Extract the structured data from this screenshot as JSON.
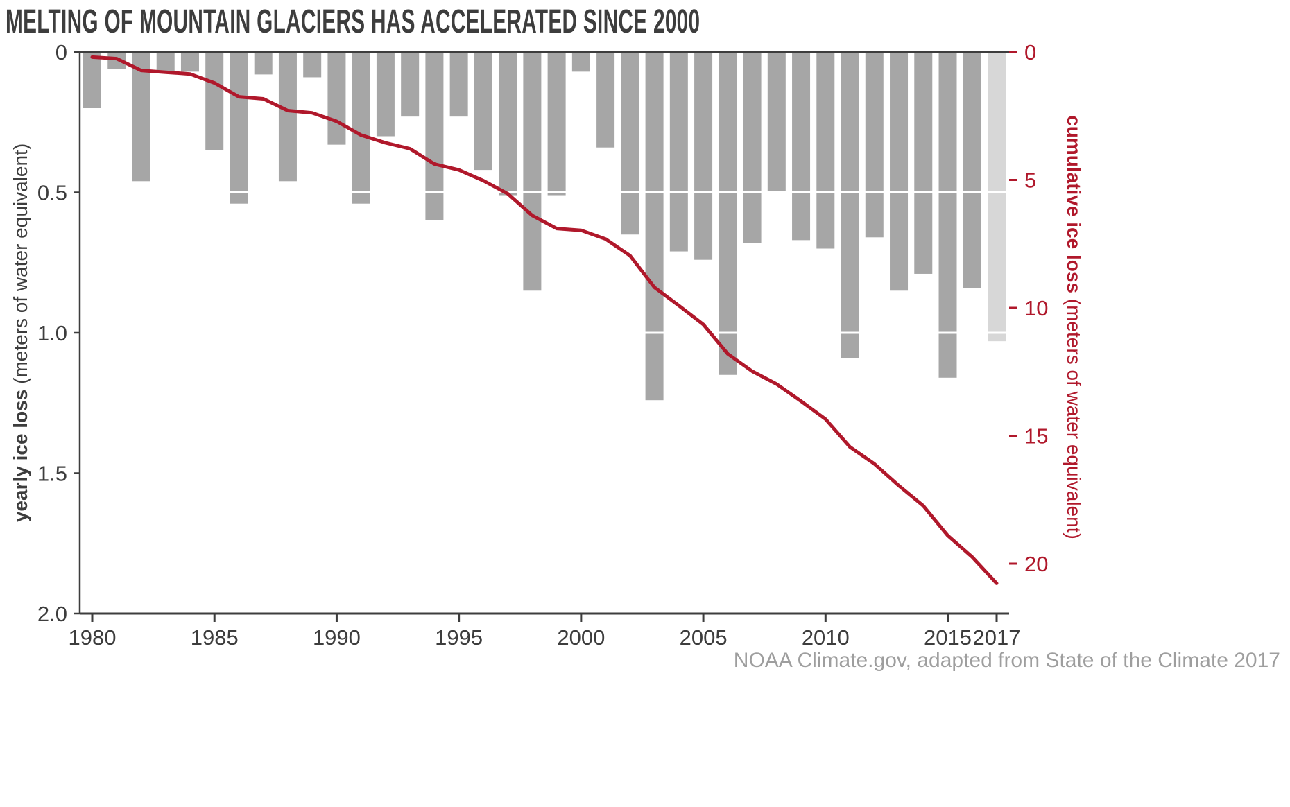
{
  "title": "MELTING OF MOUNTAIN GLACIERS HAS ACCELERATED SINCE 2000",
  "source": "NOAA Climate.gov, adapted from State of the Climate 2017",
  "colors": {
    "bar": "#a6a6a6",
    "bar_preliminary": "#d7d7d7",
    "line": "#b0182b",
    "axis_dark": "#3d3d3d",
    "grid_white": "#ffffff",
    "source_gray": "#9e9e9e"
  },
  "chart_data": {
    "type": "bar",
    "title": "MELTING OF MOUNTAIN GLACIERS HAS ACCELERATED SINCE 2000",
    "years": [
      1980,
      1981,
      1982,
      1983,
      1984,
      1985,
      1986,
      1987,
      1988,
      1989,
      1990,
      1991,
      1992,
      1993,
      1994,
      1995,
      1996,
      1997,
      1998,
      1999,
      2000,
      2001,
      2002,
      2003,
      2004,
      2005,
      2006,
      2007,
      2008,
      2009,
      2010,
      2011,
      2012,
      2013,
      2014,
      2015,
      2016,
      2017
    ],
    "series": [
      {
        "name": "yearly ice loss",
        "chart": "bar",
        "axis": "left",
        "values": [
          0.2,
          0.06,
          0.46,
          0.07,
          0.07,
          0.35,
          0.54,
          0.08,
          0.46,
          0.09,
          0.33,
          0.54,
          0.3,
          0.23,
          0.6,
          0.23,
          0.42,
          0.51,
          0.85,
          0.51,
          0.07,
          0.34,
          0.65,
          1.24,
          0.71,
          0.74,
          1.15,
          0.68,
          0.5,
          0.67,
          0.7,
          1.09,
          0.66,
          0.85,
          0.79,
          1.16,
          0.84,
          1.03
        ]
      },
      {
        "name": "cumulative ice loss",
        "chart": "line",
        "axis": "right",
        "values": [
          0.2,
          0.26,
          0.72,
          0.79,
          0.86,
          1.21,
          1.75,
          1.83,
          2.29,
          2.38,
          2.71,
          3.25,
          3.55,
          3.78,
          4.38,
          4.61,
          5.03,
          5.54,
          6.39,
          6.9,
          6.97,
          7.31,
          7.96,
          9.2,
          9.91,
          10.65,
          11.8,
          12.48,
          12.98,
          13.65,
          14.35,
          15.44,
          16.1,
          16.95,
          17.74,
          18.9,
          19.74,
          20.77
        ]
      }
    ],
    "preliminary_year": 2017,
    "left_axis": {
      "title_bold": "yearly ice loss",
      "title_normal": " (meters of water equivalent)",
      "tick_values": [
        0,
        0.5,
        1.0,
        1.5,
        2.0
      ],
      "tick_labels": [
        "0",
        "0.5",
        "1.0",
        "1.5",
        "2.0"
      ],
      "range": [
        0,
        2.0
      ],
      "direction": "downward"
    },
    "right_axis": {
      "title_bold": "cumulative ice loss",
      "title_normal": " (meters of water equivalent)",
      "tick_values": [
        0,
        5,
        10,
        15,
        20
      ],
      "tick_labels": [
        "0",
        "5",
        "10",
        "15",
        "20"
      ],
      "range": [
        0,
        22
      ],
      "direction": "downward"
    },
    "x_axis": {
      "tick_values": [
        1980,
        1985,
        1990,
        1995,
        2000,
        2005,
        2010,
        2015,
        2017
      ],
      "tick_labels": [
        "1980",
        "1985",
        "1990",
        "1995",
        "2000",
        "2005",
        "2010",
        "2015",
        "2017"
      ],
      "range": [
        1980,
        2017
      ]
    },
    "gridlines": {
      "white_lines_at_left_values": [
        0.5,
        1.0,
        1.5
      ]
    },
    "legend": "none"
  }
}
